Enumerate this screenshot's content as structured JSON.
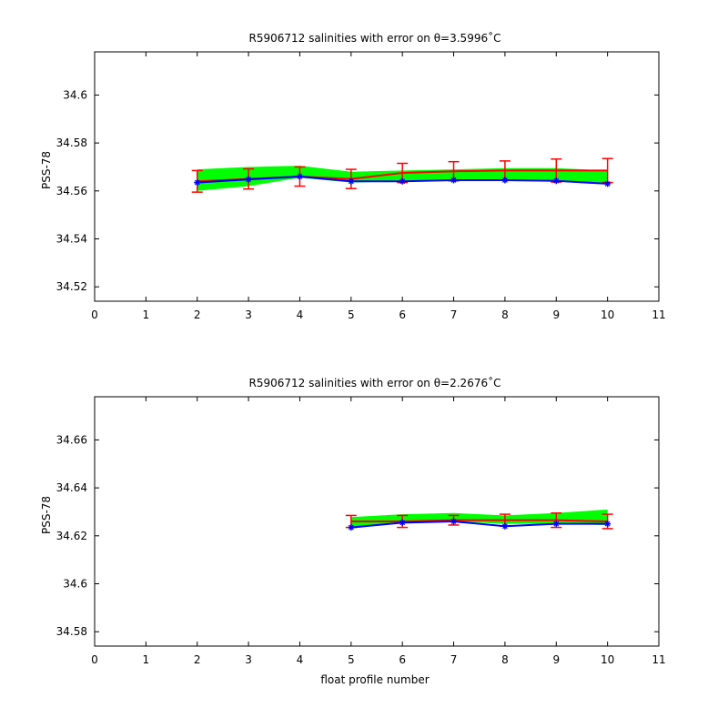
{
  "chart_data": [
    {
      "type": "line",
      "title": "R5906712 salinities with error on θ=3.5996˚C",
      "xlabel": "",
      "ylabel": "PSS-78",
      "xlim": [
        0,
        11
      ],
      "ylim": [
        34.514,
        34.618
      ],
      "xticks": [
        "0",
        "1",
        "2",
        "3",
        "4",
        "5",
        "6",
        "7",
        "8",
        "9",
        "10",
        "11"
      ],
      "yticks": [
        "34.52",
        "34.54",
        "34.56",
        "34.58",
        "34.6"
      ],
      "ytick_values": [
        34.52,
        34.54,
        34.56,
        34.58,
        34.6
      ],
      "x": [
        2,
        3,
        4,
        5,
        6,
        7,
        8,
        9,
        10
      ],
      "band": {
        "color": "#00ff00",
        "upper": [
          34.569,
          34.57,
          34.5705,
          34.568,
          34.5685,
          34.569,
          34.5695,
          34.5695,
          34.5685
        ],
        "lower": [
          34.56,
          34.562,
          34.5655,
          34.5635,
          34.564,
          34.5645,
          34.5645,
          34.564,
          34.563
        ]
      },
      "series": [
        {
          "color": "#ff0000",
          "values": [
            34.564,
            34.565,
            34.566,
            34.565,
            34.5675,
            34.5682,
            34.5685,
            34.5685,
            34.5685
          ],
          "err": [
            0.0045,
            0.0042,
            0.004,
            0.004,
            0.004,
            0.004,
            0.004,
            0.0048,
            0.005
          ]
        },
        {
          "color": "#0000ff",
          "values": [
            34.5635,
            34.5648,
            34.566,
            34.564,
            34.564,
            34.5645,
            34.5645,
            34.5642,
            34.563
          ]
        }
      ]
    },
    {
      "type": "line",
      "title": "R5906712 salinities with error on θ=2.2676˚C",
      "xlabel": "float profile number",
      "ylabel": "PSS-78",
      "xlim": [
        0,
        11
      ],
      "ylim": [
        34.574,
        34.678
      ],
      "xticks": [
        "0",
        "1",
        "2",
        "3",
        "4",
        "5",
        "6",
        "7",
        "8",
        "9",
        "10",
        "11"
      ],
      "yticks": [
        "34.58",
        "34.6",
        "34.62",
        "34.64",
        "34.66"
      ],
      "ytick_values": [
        34.58,
        34.6,
        34.62,
        34.64,
        34.66
      ],
      "x": [
        5,
        6,
        7,
        8,
        9,
        10
      ],
      "band": {
        "color": "#00ff00",
        "upper": [
          34.6278,
          34.629,
          34.6295,
          34.6285,
          34.6295,
          34.631
        ],
        "lower": [
          34.623,
          34.6255,
          34.626,
          34.625,
          34.625,
          34.6245
        ]
      },
      "series": [
        {
          "color": "#ff0000",
          "values": [
            34.626,
            34.626,
            34.6265,
            34.6265,
            34.6265,
            34.626
          ],
          "err": [
            0.0025,
            0.0025,
            0.002,
            0.0025,
            0.003,
            0.003
          ]
        },
        {
          "color": "#0000ff",
          "values": [
            34.6235,
            34.6255,
            34.626,
            34.624,
            34.625,
            34.625
          ]
        }
      ]
    }
  ]
}
